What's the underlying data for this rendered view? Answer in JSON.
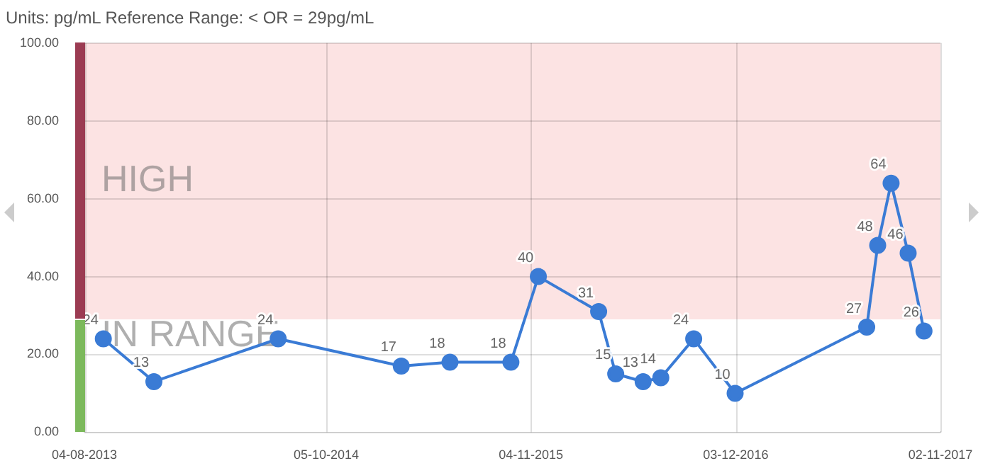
{
  "chart_data": {
    "type": "line",
    "title": "Units: pg/mL Reference Range: < OR = 29pg/mL",
    "x": [
      "2013-05-09",
      "2013-07-31",
      "2014-02-20",
      "2014-09-10",
      "2014-11-29",
      "2015-03-09",
      "2015-04-23",
      "2015-07-31",
      "2015-08-28",
      "2015-10-12",
      "2015-11-10",
      "2016-01-03",
      "2016-03-11",
      "2016-10-13",
      "2016-10-31",
      "2016-11-22",
      "2016-12-20",
      "2017-01-15"
    ],
    "series": [
      {
        "color": "#3a7bd5",
        "values": [
          24,
          13,
          24,
          17,
          18,
          18,
          40,
          31,
          15,
          13,
          14,
          24,
          10,
          27,
          48,
          64,
          46,
          26
        ]
      }
    ],
    "xlim": [
      "2013-04-08",
      "2017-02-11"
    ],
    "xticks": [
      {
        "value": "2013-04-08",
        "label": "04-08-2013"
      },
      {
        "value": "2014-05-10",
        "label": "05-10-2014"
      },
      {
        "value": "2015-04-11",
        "label": "04-11-2015"
      },
      {
        "value": "2016-03-12",
        "label": "03-12-2016"
      },
      {
        "value": "2017-02-11",
        "label": "02-11-2017"
      }
    ],
    "ylim": [
      0,
      100
    ],
    "yticks": [
      {
        "value": 0,
        "label": "0.00"
      },
      {
        "value": 20,
        "label": "20.00"
      },
      {
        "value": 40,
        "label": "40.00"
      },
      {
        "value": 60,
        "label": "60.00"
      },
      {
        "value": 80,
        "label": "80.00"
      },
      {
        "value": 100,
        "label": "100.00"
      }
    ],
    "bands": [
      {
        "axis": "y",
        "from": 29,
        "to": 100,
        "label": "HIGH",
        "color": "#fce3e3"
      },
      {
        "axis": "y",
        "from": 0,
        "to": 29,
        "label": "IN RANGE",
        "color": "#ffffff"
      }
    ],
    "data_labels": true,
    "grid": true,
    "legend": false,
    "marker": "circle",
    "line_style": "solid"
  }
}
